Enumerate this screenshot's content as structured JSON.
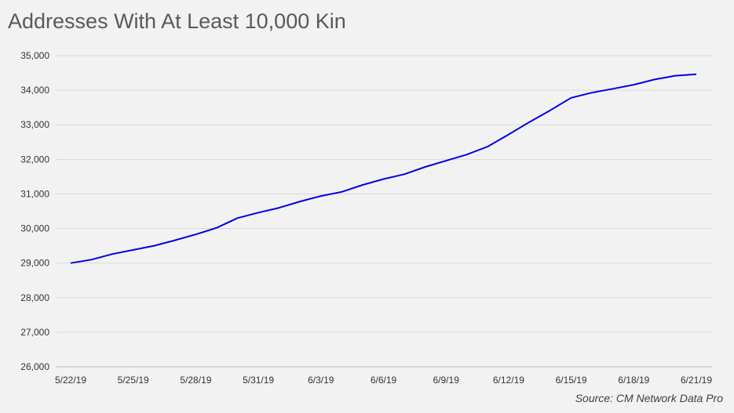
{
  "chart_data": {
    "type": "line",
    "title": "Addresses With At Least 10,000 Kin",
    "xlabel": "",
    "ylabel": "",
    "ylim": [
      26000,
      35000
    ],
    "yticks": [
      "26,000",
      "27,000",
      "28,000",
      "29,000",
      "30,000",
      "31,000",
      "32,000",
      "33,000",
      "34,000",
      "35,000"
    ],
    "ytick_values": [
      26000,
      27000,
      28000,
      29000,
      30000,
      31000,
      32000,
      33000,
      34000,
      35000
    ],
    "xticks": [
      "5/22/19",
      "5/25/19",
      "5/28/19",
      "5/31/19",
      "6/3/19",
      "6/6/19",
      "6/9/19",
      "6/12/19",
      "6/15/19",
      "6/18/19",
      "6/21/19"
    ],
    "grid": true,
    "legend": "none",
    "series": [
      {
        "color": "#0000e6",
        "x": [
          "5/22/19",
          "5/23/19",
          "5/24/19",
          "5/25/19",
          "5/26/19",
          "5/27/19",
          "5/28/19",
          "5/29/19",
          "5/30/19",
          "5/31/19",
          "6/1/19",
          "6/2/19",
          "6/3/19",
          "6/4/19",
          "6/5/19",
          "6/6/19",
          "6/7/19",
          "6/8/19",
          "6/9/19",
          "6/10/19",
          "6/11/19",
          "6/12/19",
          "6/13/19",
          "6/14/19",
          "6/15/19",
          "6/16/19",
          "6/17/19",
          "6/18/19",
          "6/19/19",
          "6/20/19",
          "6/21/19"
        ],
        "values": [
          29000,
          29100,
          29260,
          29380,
          29500,
          29660,
          29830,
          30020,
          30300,
          30460,
          30600,
          30780,
          30940,
          31060,
          31260,
          31430,
          31570,
          31780,
          31960,
          32140,
          32370,
          32720,
          33080,
          33420,
          33780,
          33930,
          34040,
          34160,
          34310,
          34420,
          34460
        ]
      }
    ],
    "source": "Source: CM Network Data Pro"
  }
}
